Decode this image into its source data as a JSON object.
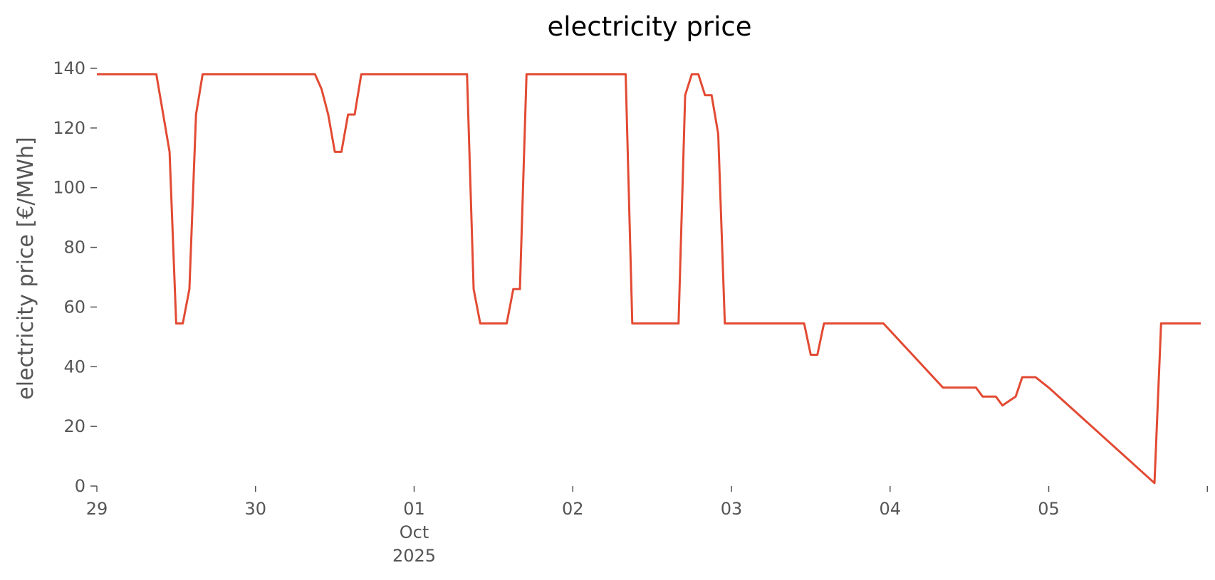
{
  "chart_data": {
    "type": "line",
    "title": "electricity price",
    "ylabel": "electricity price [€/MWh]",
    "xlabel": "",
    "ylim": [
      0,
      140
    ],
    "xlim": [
      "2025-09-29T00:00",
      "2025-10-05T23:00"
    ],
    "grid": false,
    "yticks": [
      0,
      20,
      40,
      60,
      80,
      100,
      120,
      140
    ],
    "xticks": [
      {
        "at": "2025-09-29T00:00",
        "label": "29",
        "sub": []
      },
      {
        "at": "2025-09-30T00:00",
        "label": "30",
        "sub": []
      },
      {
        "at": "2025-10-01T00:00",
        "label": "01",
        "sub": [
          "Oct",
          "2025"
        ]
      },
      {
        "at": "2025-10-02T00:00",
        "label": "02",
        "sub": []
      },
      {
        "at": "2025-10-03T00:00",
        "label": "03",
        "sub": []
      },
      {
        "at": "2025-10-04T00:00",
        "label": "04",
        "sub": []
      },
      {
        "at": "2025-10-05T00:00",
        "label": "05",
        "sub": []
      },
      {
        "at": "2025-10-06T00:00",
        "label": "",
        "sub": []
      }
    ],
    "colors": {
      "line": "#E24A33"
    },
    "series": [
      {
        "name": "",
        "x": [
          "2025-09-29T00:00",
          "2025-09-29T09:00",
          "2025-09-29T11:00",
          "2025-09-29T12:00",
          "2025-09-29T13:00",
          "2025-09-29T14:00",
          "2025-09-29T15:00",
          "2025-09-29T16:00",
          "2025-09-30T09:00",
          "2025-09-30T10:00",
          "2025-09-30T11:00",
          "2025-09-30T12:00",
          "2025-09-30T13:00",
          "2025-09-30T14:00",
          "2025-09-30T15:00",
          "2025-09-30T16:00",
          "2025-10-01T08:00",
          "2025-10-01T09:00",
          "2025-10-01T10:00",
          "2025-10-01T14:00",
          "2025-10-01T15:00",
          "2025-10-01T16:00",
          "2025-10-01T17:00",
          "2025-10-02T08:00",
          "2025-10-02T09:00",
          "2025-10-02T16:00",
          "2025-10-02T17:00",
          "2025-10-02T18:00",
          "2025-10-02T19:00",
          "2025-10-02T20:00",
          "2025-10-02T21:00",
          "2025-10-02T22:00",
          "2025-10-02T23:00",
          "2025-10-03T11:00",
          "2025-10-03T12:00",
          "2025-10-03T13:00",
          "2025-10-03T14:00",
          "2025-10-03T23:00",
          "2025-10-04T08:00",
          "2025-10-04T09:00",
          "2025-10-04T13:00",
          "2025-10-04T14:00",
          "2025-10-04T15:00",
          "2025-10-04T16:00",
          "2025-10-04T17:00",
          "2025-10-04T19:00",
          "2025-10-04T20:00",
          "2025-10-04T22:00",
          "2025-10-05T00:00",
          "2025-10-05T16:00",
          "2025-10-05T17:00",
          "2025-10-05T23:00"
        ],
        "values": [
          138,
          138,
          112,
          54.5,
          54.5,
          66,
          124.5,
          138,
          138,
          133,
          124.5,
          112,
          112,
          124.5,
          124.5,
          138,
          138,
          66,
          54.5,
          54.5,
          66,
          66,
          138,
          138,
          54.5,
          54.5,
          131,
          138,
          138,
          131,
          131,
          118,
          54.5,
          54.5,
          44,
          44,
          54.5,
          54.5,
          33,
          33,
          33,
          30,
          30,
          30,
          27,
          30,
          36.5,
          36.5,
          33,
          1,
          54.5,
          54.5
        ]
      }
    ]
  }
}
